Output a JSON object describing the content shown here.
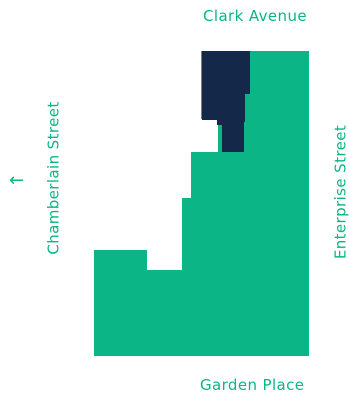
{
  "streets": {
    "north": "Clark Avenue",
    "south": "Garden Place",
    "west": "Chamberlain Street",
    "east": "Enterprise Street"
  },
  "direction_arrow": "←",
  "colors": {
    "parcel": "#0bb585",
    "highlight": "#14284a",
    "label": "#0bb585",
    "background": "#ffffff"
  }
}
